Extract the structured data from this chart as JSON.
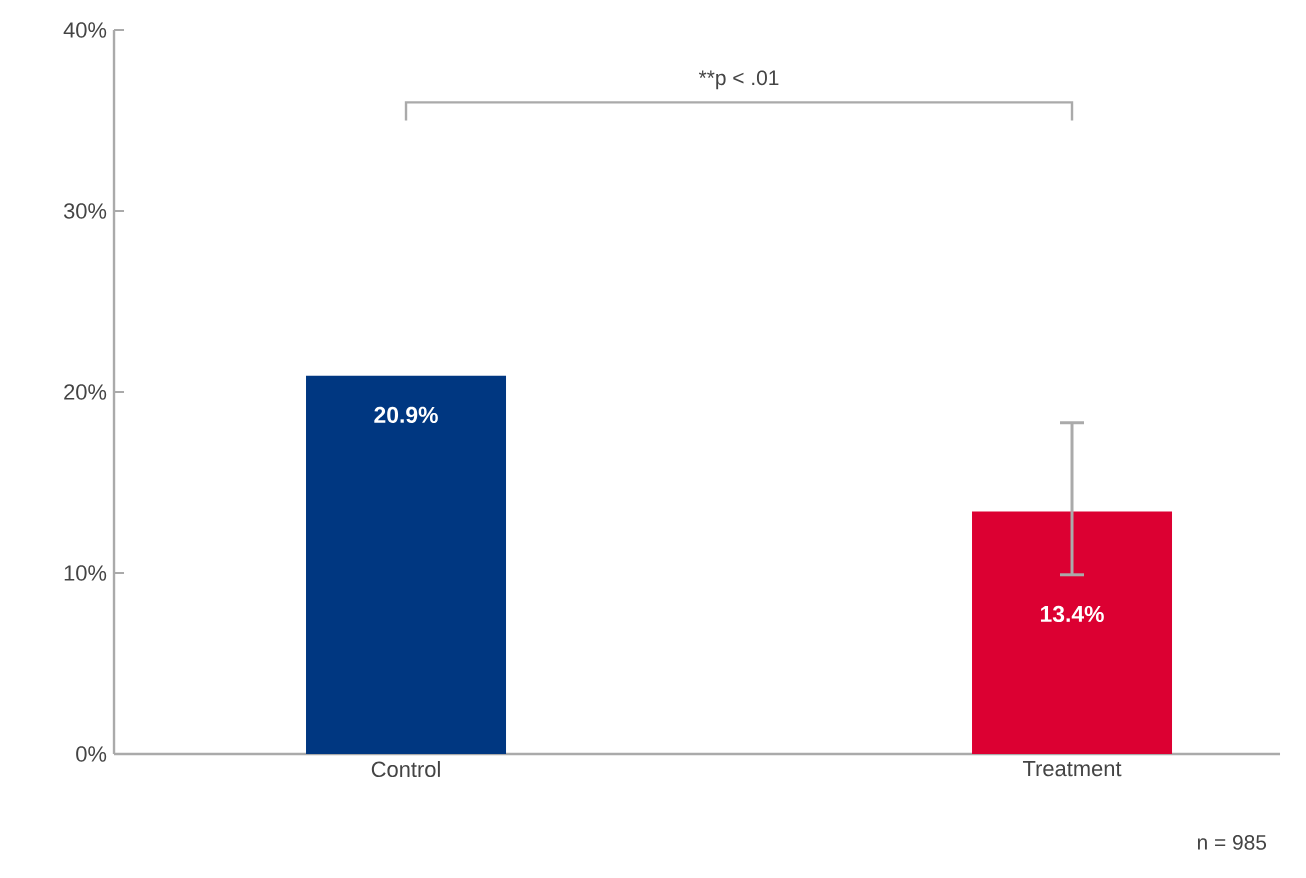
{
  "chart_data": {
    "type": "bar",
    "categories": [
      "Control",
      "Treatment"
    ],
    "values": [
      20.9,
      13.4
    ],
    "colors": [
      "#003781",
      "#dc0032"
    ],
    "value_labels": [
      "20.9%",
      "13.4%"
    ],
    "errors": [
      null,
      [
        9.9,
        18.3
      ]
    ],
    "ylim": [
      0,
      40
    ],
    "yticks": [
      {
        "value": 0,
        "label": "0%"
      },
      {
        "value": 10,
        "label": "10%"
      },
      {
        "value": 20,
        "label": "20%"
      },
      {
        "value": 30,
        "label": "30%"
      },
      {
        "value": 40,
        "label": "40%"
      }
    ],
    "grid": false,
    "annotations": [
      "**p < .01",
      "n = 985"
    ]
  }
}
